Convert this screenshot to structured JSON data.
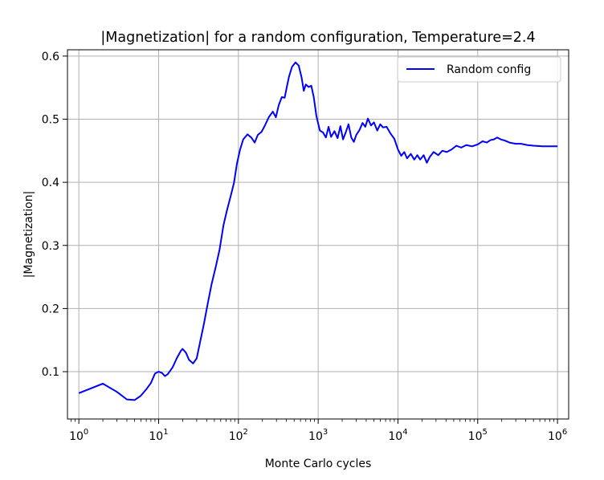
{
  "chart_data": {
    "type": "line",
    "title": "|Magnetization| for a random configuration, Temperature=2.4",
    "xlabel": "Monte Carlo cycles",
    "ylabel": "|Magnetization|",
    "xscale": "log",
    "xlim": [
      0.72,
      1380000
    ],
    "ylim": [
      0.025,
      0.61
    ],
    "grid": true,
    "legend_position": "upper right",
    "x_ticks": [
      {
        "value": 1,
        "base": "10",
        "exp": "0"
      },
      {
        "value": 10,
        "base": "10",
        "exp": "1"
      },
      {
        "value": 100,
        "base": "10",
        "exp": "2"
      },
      {
        "value": 1000,
        "base": "10",
        "exp": "3"
      },
      {
        "value": 10000,
        "base": "10",
        "exp": "4"
      },
      {
        "value": 100000,
        "base": "10",
        "exp": "5"
      },
      {
        "value": 1000000,
        "base": "10",
        "exp": "6"
      }
    ],
    "y_ticks": [
      "0.1",
      "0.2",
      "0.3",
      "0.4",
      "0.5",
      "0.6"
    ],
    "series": [
      {
        "name": "Random config",
        "color": "#0000ff",
        "points": [
          [
            1,
            0.066
          ],
          [
            2,
            0.081
          ],
          [
            3,
            0.068
          ],
          [
            4,
            0.056
          ],
          [
            5,
            0.055
          ],
          [
            6,
            0.062
          ],
          [
            7,
            0.072
          ],
          [
            8,
            0.082
          ],
          [
            9,
            0.097
          ],
          [
            10,
            0.1
          ],
          [
            11,
            0.098
          ],
          [
            12,
            0.093
          ],
          [
            13,
            0.096
          ],
          [
            15,
            0.107
          ],
          [
            17,
            0.122
          ],
          [
            19,
            0.133
          ],
          [
            20,
            0.136
          ],
          [
            22,
            0.13
          ],
          [
            24,
            0.119
          ],
          [
            27,
            0.113
          ],
          [
            30,
            0.121
          ],
          [
            33,
            0.146
          ],
          [
            37,
            0.176
          ],
          [
            41,
            0.206
          ],
          [
            46,
            0.238
          ],
          [
            52,
            0.266
          ],
          [
            58,
            0.293
          ],
          [
            65,
            0.332
          ],
          [
            72,
            0.356
          ],
          [
            80,
            0.378
          ],
          [
            88,
            0.399
          ],
          [
            96,
            0.43
          ],
          [
            105,
            0.452
          ],
          [
            115,
            0.468
          ],
          [
            130,
            0.476
          ],
          [
            145,
            0.471
          ],
          [
            160,
            0.463
          ],
          [
            175,
            0.475
          ],
          [
            195,
            0.48
          ],
          [
            215,
            0.49
          ],
          [
            240,
            0.503
          ],
          [
            270,
            0.512
          ],
          [
            295,
            0.503
          ],
          [
            320,
            0.522
          ],
          [
            350,
            0.535
          ],
          [
            380,
            0.534
          ],
          [
            400,
            0.548
          ],
          [
            430,
            0.567
          ],
          [
            470,
            0.583
          ],
          [
            520,
            0.59
          ],
          [
            570,
            0.585
          ],
          [
            620,
            0.566
          ],
          [
            660,
            0.545
          ],
          [
            700,
            0.555
          ],
          [
            760,
            0.551
          ],
          [
            820,
            0.553
          ],
          [
            880,
            0.535
          ],
          [
            950,
            0.505
          ],
          [
            1050,
            0.482
          ],
          [
            1150,
            0.479
          ],
          [
            1250,
            0.471
          ],
          [
            1350,
            0.488
          ],
          [
            1450,
            0.472
          ],
          [
            1600,
            0.481
          ],
          [
            1750,
            0.47
          ],
          [
            1900,
            0.489
          ],
          [
            2050,
            0.468
          ],
          [
            2200,
            0.478
          ],
          [
            2400,
            0.492
          ],
          [
            2600,
            0.471
          ],
          [
            2800,
            0.464
          ],
          [
            3000,
            0.475
          ],
          [
            3300,
            0.483
          ],
          [
            3600,
            0.494
          ],
          [
            3900,
            0.488
          ],
          [
            4200,
            0.501
          ],
          [
            4600,
            0.49
          ],
          [
            5000,
            0.495
          ],
          [
            5500,
            0.482
          ],
          [
            6000,
            0.492
          ],
          [
            6500,
            0.487
          ],
          [
            7200,
            0.488
          ],
          [
            8000,
            0.478
          ],
          [
            9000,
            0.469
          ],
          [
            10000,
            0.452
          ],
          [
            11000,
            0.442
          ],
          [
            12000,
            0.448
          ],
          [
            13000,
            0.438
          ],
          [
            14500,
            0.445
          ],
          [
            16000,
            0.436
          ],
          [
            17500,
            0.443
          ],
          [
            19000,
            0.436
          ],
          [
            21000,
            0.443
          ],
          [
            23000,
            0.431
          ],
          [
            25000,
            0.44
          ],
          [
            28000,
            0.448
          ],
          [
            32000,
            0.443
          ],
          [
            36000,
            0.45
          ],
          [
            41000,
            0.448
          ],
          [
            47000,
            0.452
          ],
          [
            54000,
            0.458
          ],
          [
            62000,
            0.455
          ],
          [
            72000,
            0.459
          ],
          [
            85000,
            0.457
          ],
          [
            100000,
            0.46
          ],
          [
            115000,
            0.465
          ],
          [
            130000,
            0.463
          ],
          [
            145000,
            0.467
          ],
          [
            160000,
            0.468
          ],
          [
            175000,
            0.471
          ],
          [
            195000,
            0.468
          ],
          [
            220000,
            0.466
          ],
          [
            250000,
            0.463
          ],
          [
            300000,
            0.461
          ],
          [
            350000,
            0.461
          ],
          [
            420000,
            0.459
          ],
          [
            500000,
            0.458
          ],
          [
            650000,
            0.457
          ],
          [
            800000,
            0.457
          ],
          [
            1000000,
            0.457
          ]
        ]
      }
    ]
  }
}
